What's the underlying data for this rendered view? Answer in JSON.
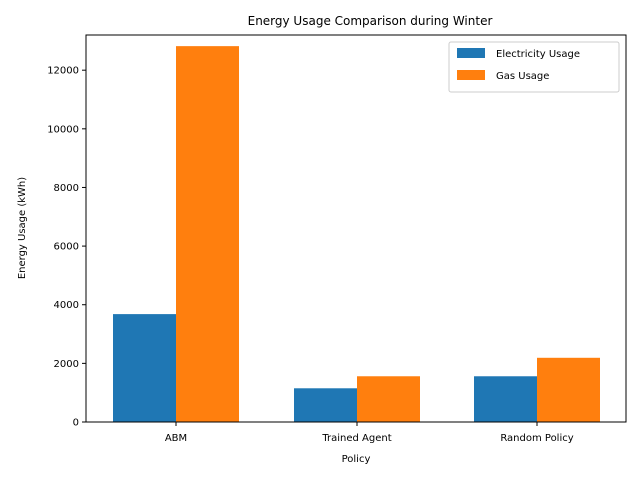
{
  "chart_data": {
    "type": "bar",
    "title": "Energy Usage Comparison during Winter",
    "xlabel": "Policy",
    "ylabel": "Energy Usage (kWh)",
    "categories": [
      "ABM",
      "Trained Agent",
      "Random Policy"
    ],
    "series": [
      {
        "name": "Electricity Usage",
        "values": [
          3680,
          1150,
          1560
        ],
        "color": "#1f77b4"
      },
      {
        "name": "Gas Usage",
        "values": [
          12820,
          1560,
          2190
        ],
        "color": "#ff7f0e"
      }
    ],
    "ylim": [
      0,
      13200
    ],
    "yticks": [
      0,
      2000,
      4000,
      6000,
      8000,
      10000,
      12000
    ],
    "legend": "top-right",
    "grid": false
  }
}
